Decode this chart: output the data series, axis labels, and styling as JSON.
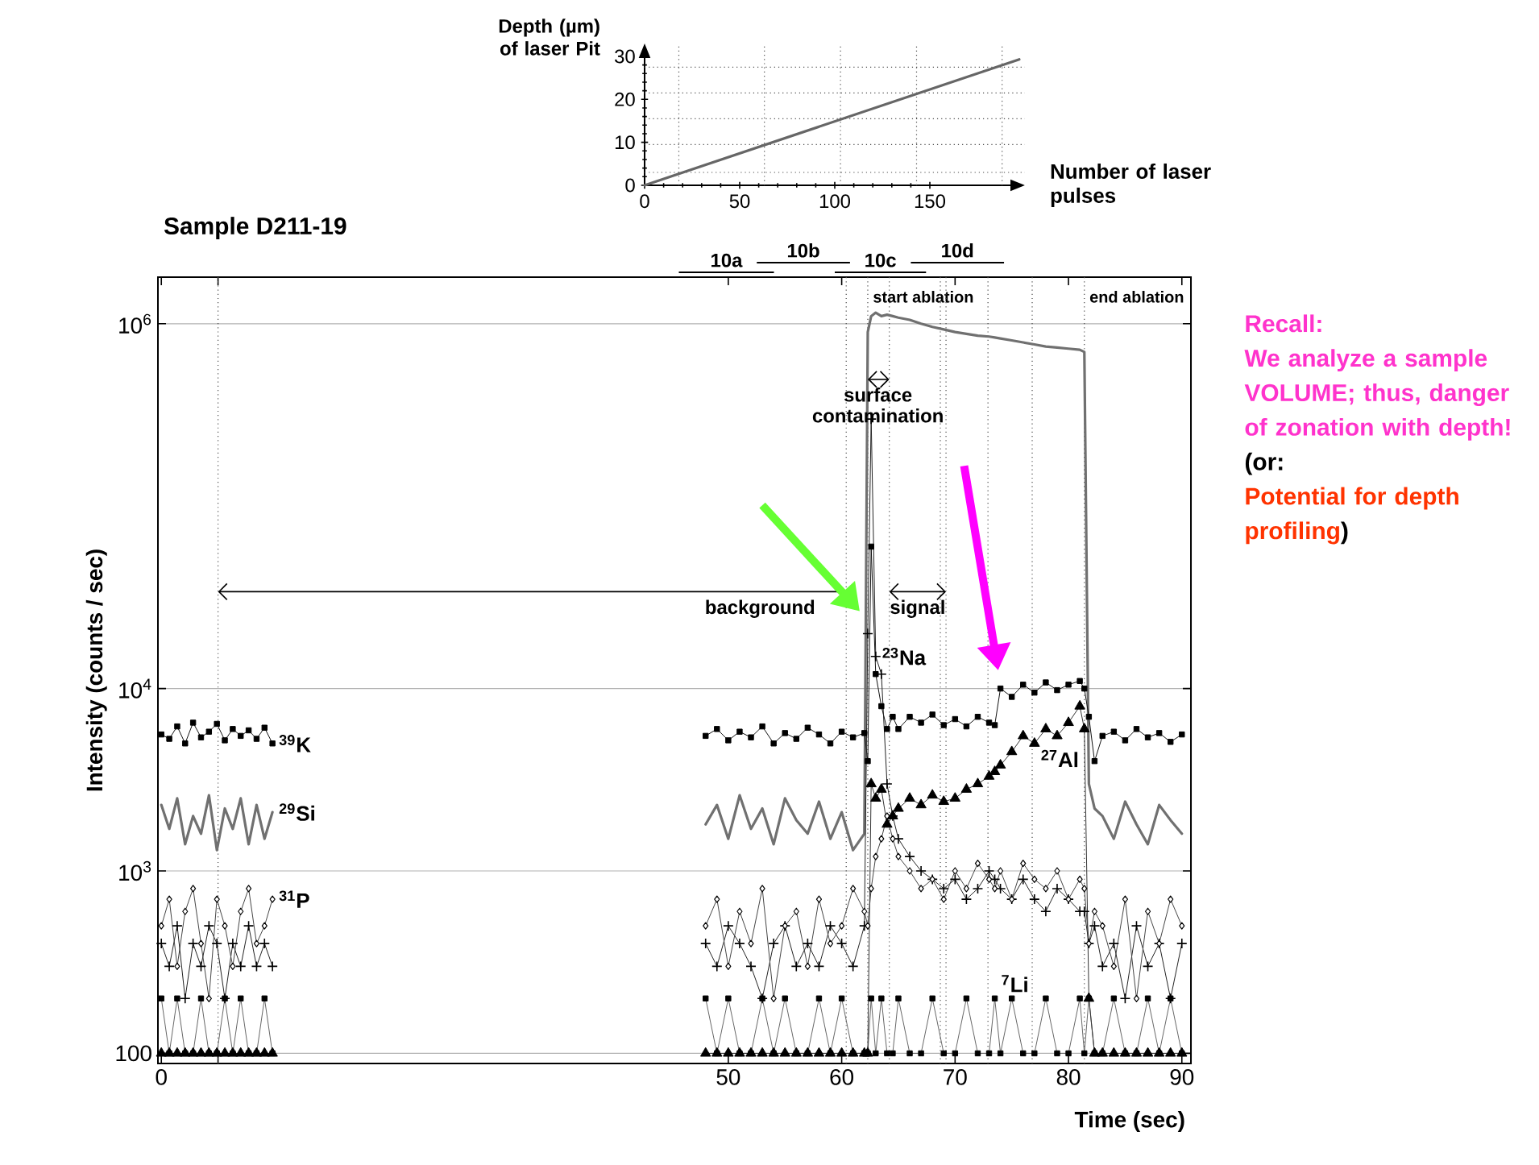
{
  "chart_data": [
    {
      "type": "line",
      "xlabel": "Number of laser pulses",
      "ylabel": "Depth (µm) of laser Pit",
      "xlim": [
        0,
        200
      ],
      "ylim": [
        0,
        33
      ],
      "xticks": [
        0,
        50,
        100,
        150
      ],
      "yticks": [
        0,
        10,
        20,
        30
      ],
      "series": [
        {
          "color": "#666666",
          "x": [
            0,
            197
          ],
          "values": [
            0,
            29.3
          ]
        }
      ],
      "ref_lines": [
        {
          "axis": "x",
          "value": 18,
          "line_style": "dotted"
        },
        {
          "axis": "x",
          "value": 63,
          "line_style": "dotted"
        },
        {
          "axis": "x",
          "value": 103,
          "line_style": "dotted"
        },
        {
          "axis": "x",
          "value": 143,
          "line_style": "dotted"
        },
        {
          "axis": "x",
          "value": 188,
          "line_style": "dotted"
        },
        {
          "axis": "y",
          "value": 3,
          "line_style": "dotted"
        },
        {
          "axis": "y",
          "value": 9.5,
          "line_style": "dotted"
        },
        {
          "axis": "y",
          "value": 15.5,
          "line_style": "dotted"
        },
        {
          "axis": "y",
          "value": 21.5,
          "line_style": "dotted"
        },
        {
          "axis": "y",
          "value": 27.5,
          "line_style": "dotted"
        }
      ],
      "annotations": [
        "10a",
        "10b",
        "10c",
        "10d"
      ]
    },
    {
      "type": "line",
      "title": "Sample D211-19",
      "xlabel": "Time (sec)",
      "ylabel": "Intensity (counts / sec)",
      "log": "y",
      "grid": "y",
      "xlim": [
        -0.3,
        90.8
      ],
      "ylim": [
        88,
        1800000
      ],
      "xticks": [
        0,
        {
          "value": 5,
          "label": null
        },
        50,
        60,
        70,
        80,
        90
      ],
      "yticks": [
        100,
        {
          "value": 1000,
          "label": "10$^{3}$"
        },
        {
          "value": 10000,
          "label": "10$^{4}$"
        },
        {
          "value": 1000000,
          "label": "10$^{6}$"
        }
      ],
      "x": [
        0,
        0.7,
        1.4,
        2.1,
        2.8,
        3.5,
        4.2,
        4.9,
        5.6,
        6.3,
        7,
        7.7,
        8.4,
        9.1,
        9.8,
        29,
        48,
        49,
        50,
        51,
        52,
        53,
        54,
        55,
        56,
        57,
        58,
        59,
        60,
        61,
        62,
        62.3,
        62.6,
        63,
        63.5,
        64,
        64.5,
        65,
        66,
        67,
        68,
        69,
        70,
        71,
        72,
        73,
        73.5,
        74,
        75,
        76,
        77,
        78,
        79,
        80,
        81,
        81.4,
        81.8,
        82.3,
        83,
        84,
        85,
        86,
        87,
        88,
        89,
        90
      ],
      "series": [
        {
          "name": "$^{29}$Si",
          "color": "#707070",
          "marker": "none",
          "values": [
            2300,
            1700,
            2500,
            1400,
            2000,
            1600,
            2600,
            1300,
            2200,
            1700,
            2500,
            1400,
            2300,
            1500,
            2100,
            null,
            1800,
            2300,
            1500,
            2600,
            1700,
            2200,
            1400,
            2500,
            1900,
            1600,
            2400,
            1500,
            2100,
            1300,
            1600,
            900000,
            1100000,
            1150000,
            1100000,
            1120000,
            1100000,
            1080000,
            1050000,
            1000000,
            960000,
            930000,
            900000,
            880000,
            860000,
            850000,
            840000,
            830000,
            810000,
            790000,
            770000,
            750000,
            740000,
            730000,
            720000,
            700000,
            3000,
            2200,
            2000,
            1500,
            2400,
            1800,
            1400,
            2300,
            1900,
            1600
          ]
        },
        {
          "name": "$^{39}$K",
          "color": "#111111",
          "marker": "square",
          "values": [
            5600,
            5300,
            6200,
            5000,
            6500,
            5400,
            5800,
            6400,
            5200,
            6000,
            5500,
            5900,
            5300,
            6100,
            5000,
            null,
            5500,
            6000,
            5200,
            5800,
            5400,
            6200,
            5000,
            5700,
            5300,
            6100,
            5600,
            5000,
            5800,
            5400,
            5700,
            4000,
            60000,
            12000,
            8000,
            6000,
            7000,
            6000,
            7000,
            6500,
            7200,
            6300,
            6800,
            6200,
            7000,
            6500,
            6300,
            10000,
            9000,
            10500,
            9500,
            10800,
            9800,
            10500,
            11000,
            10000,
            7000,
            4000,
            5500,
            5800,
            5200,
            6000,
            5400,
            5700,
            5100,
            5600
          ]
        },
        {
          "name": "$^{23}$Na",
          "color": "#222222",
          "marker": "cross",
          "values": [
            400,
            300,
            500,
            200,
            400,
            300,
            500,
            400,
            200,
            400,
            300,
            500,
            300,
            400,
            300,
            null,
            400,
            300,
            500,
            400,
            300,
            200,
            400,
            500,
            300,
            400,
            300,
            500,
            400,
            300,
            500,
            20000,
            300000,
            15000,
            12000,
            3000,
            2000,
            1500,
            1200,
            1000,
            900,
            800,
            900,
            700,
            800,
            1000,
            900,
            800,
            700,
            900,
            700,
            600,
            800,
            700,
            600,
            600,
            400,
            500,
            300,
            400,
            200,
            500,
            300,
            400,
            200,
            400
          ]
        },
        {
          "name": "$^{27}$Al",
          "color": "#333333",
          "marker": "triangle",
          "values": [
            100,
            100,
            100,
            100,
            100,
            100,
            100,
            100,
            100,
            100,
            100,
            100,
            100,
            100,
            100,
            null,
            100,
            100,
            100,
            100,
            100,
            100,
            100,
            100,
            100,
            100,
            100,
            100,
            100,
            100,
            100,
            100,
            3000,
            2500,
            2800,
            1800,
            2000,
            2200,
            2500,
            2300,
            2600,
            2400,
            2500,
            2800,
            3000,
            3300,
            3500,
            3800,
            4500,
            5500,
            5000,
            6000,
            5500,
            6500,
            8000,
            6000,
            200,
            100,
            100,
            100,
            100,
            100,
            100,
            100,
            100,
            100
          ]
        },
        {
          "name": "$^{31}$P",
          "color": "#444444",
          "marker": "diamond",
          "values": [
            500,
            700,
            300,
            600,
            800,
            400,
            200,
            700,
            500,
            300,
            600,
            800,
            400,
            500,
            700,
            null,
            500,
            700,
            300,
            600,
            400,
            800,
            200,
            500,
            600,
            300,
            700,
            400,
            500,
            800,
            600,
            500,
            800,
            1200,
            1500,
            2000,
            1500,
            1200,
            1000,
            800,
            900,
            700,
            1000,
            800,
            1100,
            900,
            800,
            1000,
            700,
            1100,
            900,
            800,
            1000,
            700,
            900,
            800,
            400,
            600,
            500,
            300,
            700,
            200,
            600,
            400,
            700,
            500
          ]
        },
        {
          "name": "$^{7}$Li",
          "color": "#666666",
          "marker": "square",
          "values": [
            200,
            100,
            200,
            100,
            100,
            200,
            100,
            100,
            200,
            100,
            200,
            100,
            100,
            200,
            100,
            null,
            200,
            100,
            200,
            100,
            100,
            200,
            100,
            200,
            100,
            100,
            200,
            100,
            200,
            100,
            100,
            100,
            200,
            100,
            200,
            100,
            100,
            200,
            100,
            100,
            200,
            100,
            100,
            200,
            100,
            100,
            200,
            100,
            200,
            100,
            100,
            200,
            100,
            100,
            200,
            100,
            200,
            100,
            100,
            200,
            100,
            100,
            200,
            100,
            200,
            100
          ]
        }
      ],
      "ref_lines": [
        {
          "axis": "x",
          "value": 5,
          "line_style": "dotted"
        },
        {
          "axis": "x",
          "value": 60.4,
          "line_style": "dotted"
        },
        {
          "axis": "x",
          "value": 62.3,
          "label": "start ablation",
          "line_style": "dotted"
        },
        {
          "axis": "x",
          "value": 64.2,
          "line_style": "dotted"
        },
        {
          "axis": "x",
          "value": 68.7,
          "line_style": "dotted"
        },
        {
          "axis": "x",
          "value": 69.2,
          "line_style": "dotted"
        },
        {
          "axis": "x",
          "value": 72.9,
          "line_style": "dotted"
        },
        {
          "axis": "x",
          "value": 76.8,
          "line_style": "dotted"
        },
        {
          "axis": "x",
          "value": 81.4,
          "label": "end ablation",
          "line_style": "dotted"
        }
      ],
      "annotations": [
        "surface contamination",
        "signal",
        "background",
        "Recall:",
        "We analyze a sample VOLUME; thus, danger of zonation with depth!",
        "(or:",
        "Potential for depth profiling",
        ")"
      ]
    }
  ]
}
